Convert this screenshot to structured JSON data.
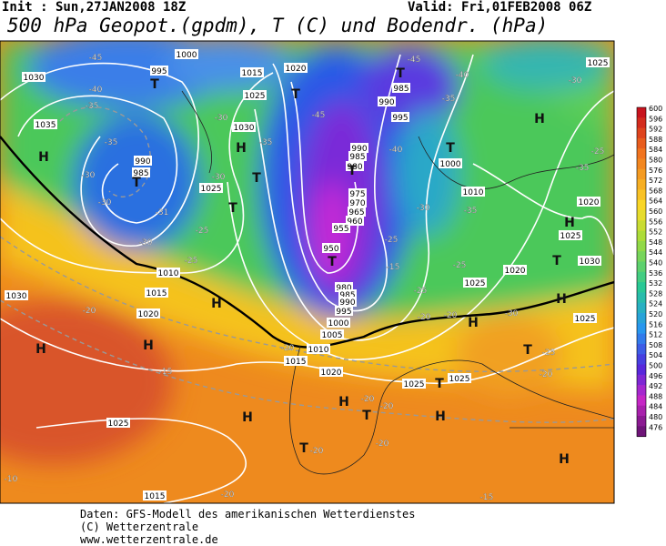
{
  "header": {
    "init": "Init : Sun,27JAN2008 18Z",
    "valid": "Valid: Fri,01FEB2008 06Z",
    "title": "500 hPa Geopot.(gpdm), T (C) und Bodendr. (hPa)"
  },
  "colorbar": {
    "levels": [
      600,
      596,
      592,
      588,
      584,
      580,
      576,
      572,
      568,
      564,
      560,
      556,
      552,
      548,
      544,
      540,
      536,
      532,
      528,
      524,
      520,
      516,
      512,
      508,
      504,
      500,
      496,
      492,
      488,
      484,
      480,
      476
    ]
  },
  "map_labels": [
    "1000",
    "1015",
    "1020",
    "1030",
    "1035",
    "995",
    "1025",
    "1030",
    "990",
    "985",
    "1025",
    "1010",
    "1015",
    "1020",
    "1030",
    "1025",
    "1015",
    "1010",
    "1015",
    "1020",
    "1025",
    "1025",
    "1020",
    "1025",
    "1010",
    "1000",
    "1025",
    "1030",
    "1025",
    "1020",
    "1025",
    "985",
    "990",
    "995",
    "990",
    "985",
    "980",
    "975",
    "970",
    "965",
    "960",
    "955",
    "950",
    "980",
    "985",
    "990",
    "995",
    "1000",
    "1005",
    "-45",
    "-40",
    "-35",
    "-30",
    "-35",
    "-30",
    "-31",
    "-25",
    "-30",
    "-25",
    "-30",
    "-30",
    "-35",
    "-45",
    "-40",
    "-45",
    "-40",
    "-35",
    "-30",
    "-25",
    "-15",
    "-25",
    "-20",
    "-20",
    "-25",
    "-35",
    "-30",
    "-25",
    "-30",
    "-35",
    "-20",
    "-15",
    "-20",
    "-20",
    "-20",
    "-20",
    "-20",
    "-20",
    "-15",
    "-10",
    "-25",
    "-20",
    "H",
    "H",
    "T",
    "T",
    "T",
    "T",
    "T",
    "H",
    "H",
    "H",
    "H",
    "T",
    "H",
    "T",
    "H",
    "T",
    "H",
    "T",
    "T",
    "T",
    "T",
    "H",
    "H",
    "T",
    "H",
    "H",
    "T"
  ],
  "footer": {
    "line1": "Daten: GFS-Modell des amerikanischen Wetterdienstes",
    "line2": "(C) Wetterzentrale",
    "line3": "www.wetterzentrale.de"
  }
}
